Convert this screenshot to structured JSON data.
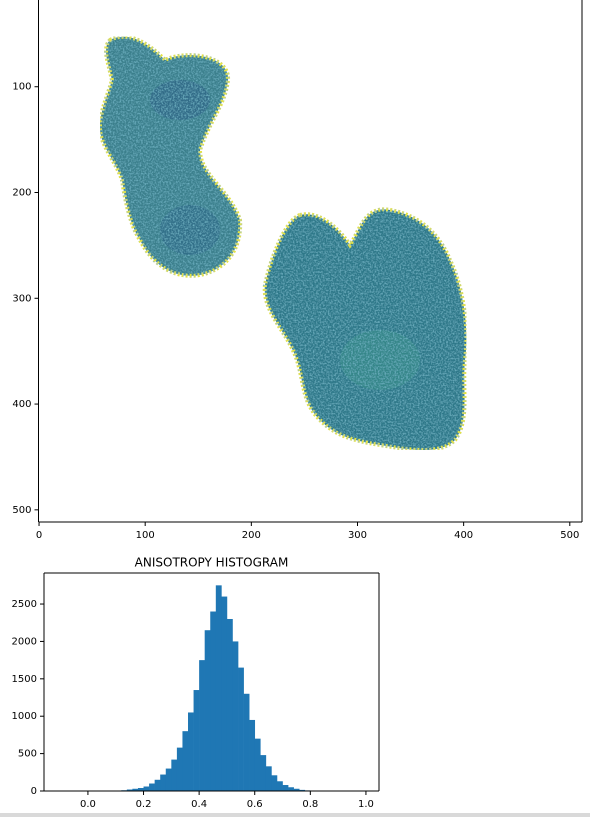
{
  "chart_data": [
    {
      "type": "image",
      "xlim": [
        -0.5,
        511.5
      ],
      "ylim": [
        511.5,
        18
      ],
      "xticks": [
        0,
        100,
        200,
        300,
        400,
        500
      ],
      "yticks": [
        100,
        200,
        300,
        400,
        500
      ]
    },
    {
      "type": "histogram",
      "title": "ANISOTROPY HISTOGRAM",
      "color": "#1f77b4",
      "bins": [
        0.12,
        0.14,
        0.16,
        0.18,
        0.2,
        0.22,
        0.24,
        0.26,
        0.28,
        0.3,
        0.32,
        0.34,
        0.36,
        0.38,
        0.4,
        0.42,
        0.44,
        0.46,
        0.48,
        0.5,
        0.52,
        0.54,
        0.56,
        0.58,
        0.6,
        0.62,
        0.64,
        0.66,
        0.68,
        0.7,
        0.72,
        0.74,
        0.76,
        0.78,
        0.8
      ],
      "values": [
        10,
        20,
        30,
        40,
        60,
        100,
        150,
        220,
        300,
        420,
        580,
        800,
        1050,
        1350,
        1750,
        2150,
        2400,
        2750,
        2600,
        2300,
        2000,
        1650,
        1300,
        950,
        700,
        480,
        330,
        210,
        130,
        80,
        50,
        30,
        15,
        8
      ],
      "xlim": [
        -0.158,
        1.047
      ],
      "ylim": [
        0,
        2915
      ],
      "xticks": [
        {
          "value": 0,
          "label": "0.0"
        },
        0.2,
        0.4,
        0.6,
        0.8,
        {
          "value": 1,
          "label": "1.0"
        }
      ],
      "yticks": [
        0,
        500,
        1000,
        1500,
        2000,
        2500
      ]
    }
  ]
}
